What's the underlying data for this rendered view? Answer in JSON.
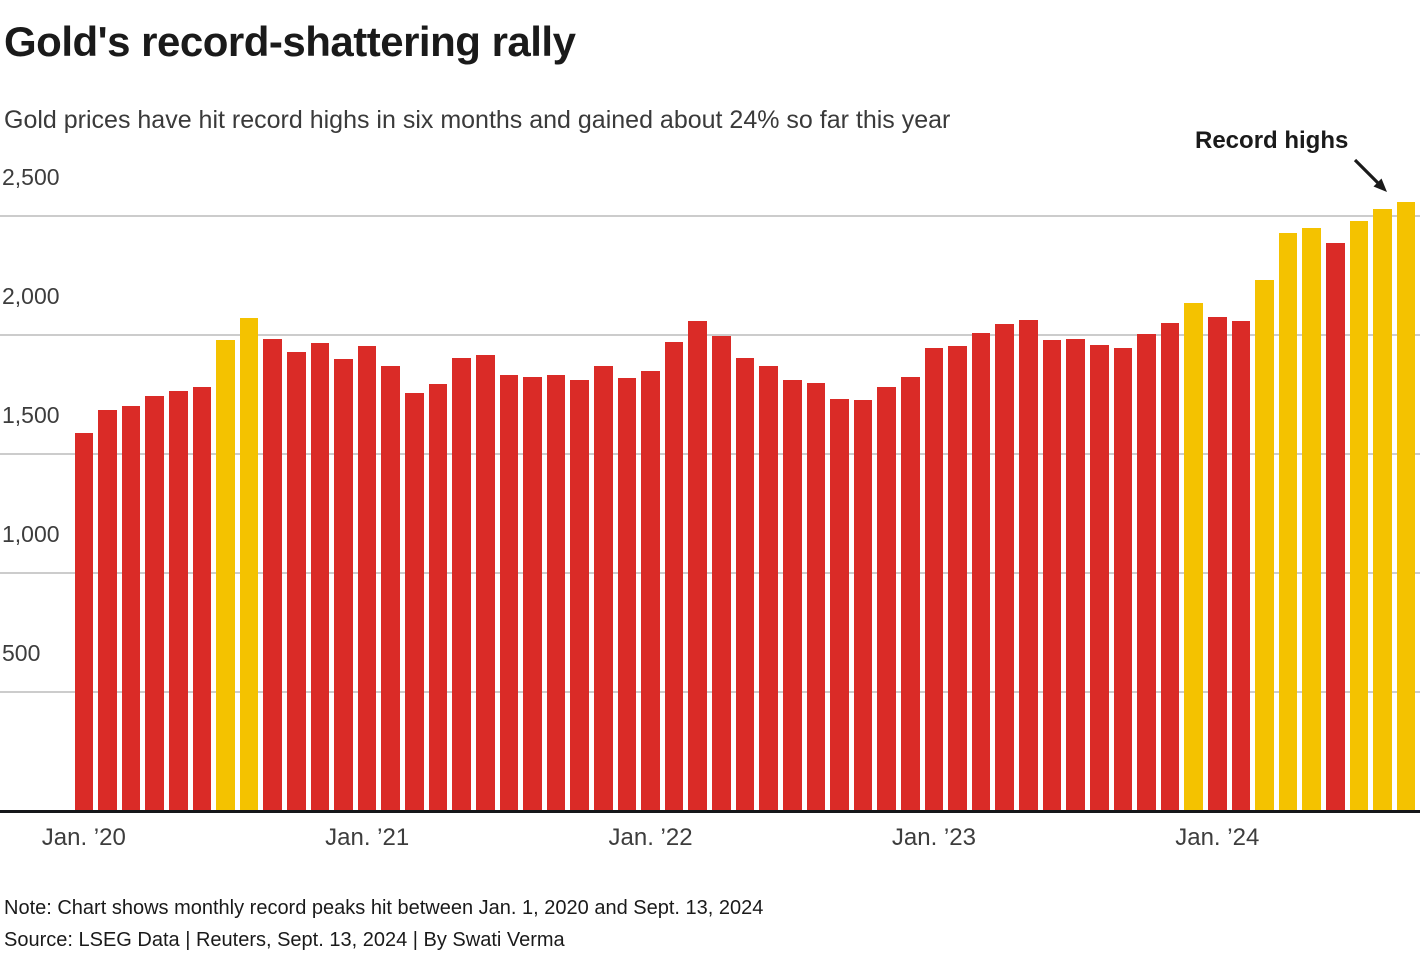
{
  "header": {
    "title": "Gold's record-shattering rally",
    "subtitle": "Gold prices have hit record highs in six months and gained about 24% so far this year"
  },
  "annotation": {
    "record_highs_label": "Record highs"
  },
  "footer": {
    "note": "Note: Chart shows monthly record peaks hit between Jan. 1, 2020 and Sept. 13, 2024",
    "source": "Source: LSEG Data | Reuters, Sept. 13, 2024 | By Swati Verma"
  },
  "colors": {
    "bar_red": "#da2b27",
    "bar_record_gold": "#f4c200",
    "grid_line": "#cccccc",
    "axis_line": "#16171a",
    "title_text": "#1a1a1a",
    "body_text": "#3d3d3d"
  },
  "chart_data": {
    "type": "bar",
    "title": "Gold's record-shattering rally",
    "xlabel": "",
    "ylabel": "",
    "ylim": [
      0,
      2500
    ],
    "grid": "horizontal",
    "legend": "none",
    "record_color_meaning": "Record highs",
    "yticks": [
      {
        "value": 500,
        "label": "500"
      },
      {
        "value": 1000,
        "label": "1,000"
      },
      {
        "value": 1500,
        "label": "1,500"
      },
      {
        "value": 2000,
        "label": "2,000"
      },
      {
        "value": 2500,
        "label": "2,500"
      }
    ],
    "xticks": [
      {
        "month_index": 0,
        "label": "Jan. ’20"
      },
      {
        "month_index": 12,
        "label": "Jan. ’21"
      },
      {
        "month_index": 24,
        "label": "Jan. ’22"
      },
      {
        "month_index": 36,
        "label": "Jan. ’23"
      },
      {
        "month_index": 48,
        "label": "Jan. ’24"
      }
    ],
    "points": [
      {
        "month": "Jan. 2020",
        "value": 1590,
        "record": false
      },
      {
        "month": "Feb. 2020",
        "value": 1685,
        "record": false
      },
      {
        "month": "Mar. 2020",
        "value": 1700,
        "record": false
      },
      {
        "month": "Apr. 2020",
        "value": 1745,
        "record": false
      },
      {
        "month": "May 2020",
        "value": 1765,
        "record": false
      },
      {
        "month": "Jun. 2020",
        "value": 1780,
        "record": false
      },
      {
        "month": "Jul. 2020",
        "value": 1980,
        "record": true
      },
      {
        "month": "Aug. 2020",
        "value": 2070,
        "record": true
      },
      {
        "month": "Sep. 2020",
        "value": 1985,
        "record": false
      },
      {
        "month": "Oct. 2020",
        "value": 1930,
        "record": false
      },
      {
        "month": "Nov. 2020",
        "value": 1965,
        "record": false
      },
      {
        "month": "Dec. 2020",
        "value": 1900,
        "record": false
      },
      {
        "month": "Jan. 2021",
        "value": 1955,
        "record": false
      },
      {
        "month": "Feb. 2021",
        "value": 1870,
        "record": false
      },
      {
        "month": "Mar. 2021",
        "value": 1755,
        "record": false
      },
      {
        "month": "Apr. 2021",
        "value": 1795,
        "record": false
      },
      {
        "month": "May 2021",
        "value": 1905,
        "record": false
      },
      {
        "month": "Jun. 2021",
        "value": 1915,
        "record": false
      },
      {
        "month": "Jul. 2021",
        "value": 1830,
        "record": false
      },
      {
        "month": "Aug. 2021",
        "value": 1825,
        "record": false
      },
      {
        "month": "Sep. 2021",
        "value": 1830,
        "record": false
      },
      {
        "month": "Oct. 2021",
        "value": 1810,
        "record": false
      },
      {
        "month": "Nov. 2021",
        "value": 1870,
        "record": false
      },
      {
        "month": "Dec. 2021",
        "value": 1820,
        "record": false
      },
      {
        "month": "Jan. 2022",
        "value": 1850,
        "record": false
      },
      {
        "month": "Feb. 2022",
        "value": 1970,
        "record": false
      },
      {
        "month": "Mar. 2022",
        "value": 2060,
        "record": false
      },
      {
        "month": "Apr. 2022",
        "value": 1995,
        "record": false
      },
      {
        "month": "May 2022",
        "value": 1905,
        "record": false
      },
      {
        "month": "Jun. 2022",
        "value": 1870,
        "record": false
      },
      {
        "month": "Jul. 2022",
        "value": 1810,
        "record": false
      },
      {
        "month": "Aug. 2022",
        "value": 1800,
        "record": false
      },
      {
        "month": "Sep. 2022",
        "value": 1730,
        "record": false
      },
      {
        "month": "Oct. 2022",
        "value": 1725,
        "record": false
      },
      {
        "month": "Nov. 2022",
        "value": 1780,
        "record": false
      },
      {
        "month": "Dec. 2022",
        "value": 1825,
        "record": false
      },
      {
        "month": "Jan. 2023",
        "value": 1945,
        "record": false
      },
      {
        "month": "Feb. 2023",
        "value": 1955,
        "record": false
      },
      {
        "month": "Mar. 2023",
        "value": 2010,
        "record": false
      },
      {
        "month": "Apr. 2023",
        "value": 2045,
        "record": false
      },
      {
        "month": "May 2023",
        "value": 2065,
        "record": false
      },
      {
        "month": "Jun. 2023",
        "value": 1980,
        "record": false
      },
      {
        "month": "Jul. 2023",
        "value": 1985,
        "record": false
      },
      {
        "month": "Aug. 2023",
        "value": 1960,
        "record": false
      },
      {
        "month": "Sep. 2023",
        "value": 1945,
        "record": false
      },
      {
        "month": "Oct. 2023",
        "value": 2005,
        "record": false
      },
      {
        "month": "Nov. 2023",
        "value": 2050,
        "record": false
      },
      {
        "month": "Dec. 2023",
        "value": 2135,
        "record": true
      },
      {
        "month": "Jan. 2024",
        "value": 2075,
        "record": false
      },
      {
        "month": "Feb. 2024",
        "value": 2060,
        "record": false
      },
      {
        "month": "Mar. 2024",
        "value": 2230,
        "record": true
      },
      {
        "month": "Apr. 2024",
        "value": 2430,
        "record": true
      },
      {
        "month": "May 2024",
        "value": 2450,
        "record": true
      },
      {
        "month": "Jun. 2024",
        "value": 2385,
        "record": false
      },
      {
        "month": "Jul. 2024",
        "value": 2480,
        "record": true
      },
      {
        "month": "Aug. 2024",
        "value": 2530,
        "record": true
      },
      {
        "month": "Sep. 2024",
        "value": 2560,
        "record": true
      }
    ]
  }
}
